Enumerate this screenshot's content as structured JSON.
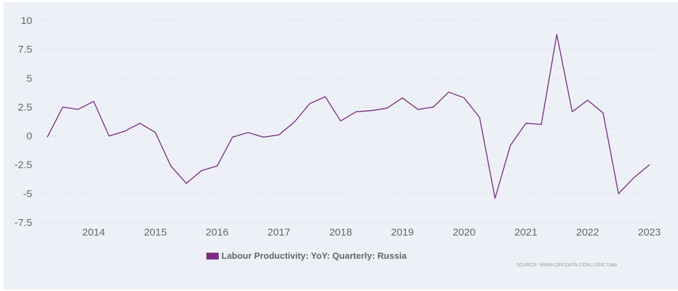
{
  "chart_data": {
    "type": "line",
    "title": "",
    "xlabel": "",
    "ylabel": "",
    "x": [
      "2013-03",
      "2013-06",
      "2013-09",
      "2013-12",
      "2014-03",
      "2014-06",
      "2014-09",
      "2014-12",
      "2015-03",
      "2015-06",
      "2015-09",
      "2015-12",
      "2016-03",
      "2016-06",
      "2016-09",
      "2016-12",
      "2017-03",
      "2017-06",
      "2017-09",
      "2017-12",
      "2018-03",
      "2018-06",
      "2018-09",
      "2018-12",
      "2019-03",
      "2019-06",
      "2019-09",
      "2019-12",
      "2020-03",
      "2020-06",
      "2020-09",
      "2020-12",
      "2021-03",
      "2021-06",
      "2021-09",
      "2021-12",
      "2022-03",
      "2022-06",
      "2022-09",
      "2022-12"
    ],
    "series": [
      {
        "name": "Labour Productivity: YoY: Quarterly: Russia",
        "color": "#7b2d83",
        "values": [
          -0.1,
          2.5,
          2.3,
          3.0,
          0.0,
          0.4,
          1.1,
          0.3,
          -2.6,
          -4.1,
          -3.0,
          -2.6,
          -0.1,
          0.3,
          -0.1,
          0.1,
          1.2,
          2.8,
          3.4,
          1.3,
          2.1,
          2.2,
          2.4,
          3.3,
          2.3,
          2.5,
          3.8,
          3.3,
          1.6,
          -5.4,
          -0.8,
          1.1,
          1.0,
          8.8,
          2.1,
          3.1,
          2.0,
          -5.0,
          -3.6,
          -2.5
        ]
      }
    ],
    "ylim": [
      -7.5,
      10
    ],
    "yticks": [
      -7.5,
      -5,
      -2.5,
      0,
      2.5,
      5,
      7.5,
      10
    ],
    "ytick_labels": [
      "-7.5",
      "-5",
      "-2.5",
      "0",
      "2.5",
      "5",
      "7.5",
      "10"
    ],
    "xticks": [
      "2014",
      "2015",
      "2016",
      "2017",
      "2018",
      "2019",
      "2020",
      "2021",
      "2022",
      "2023"
    ],
    "grid": true,
    "legend_position": "bottom-center"
  },
  "legend": {
    "label": "Labour Productivity: YoY: Quarterly: Russia"
  },
  "source": "SOURCE: WWW.CEICDATA.COM | CEIC Data"
}
